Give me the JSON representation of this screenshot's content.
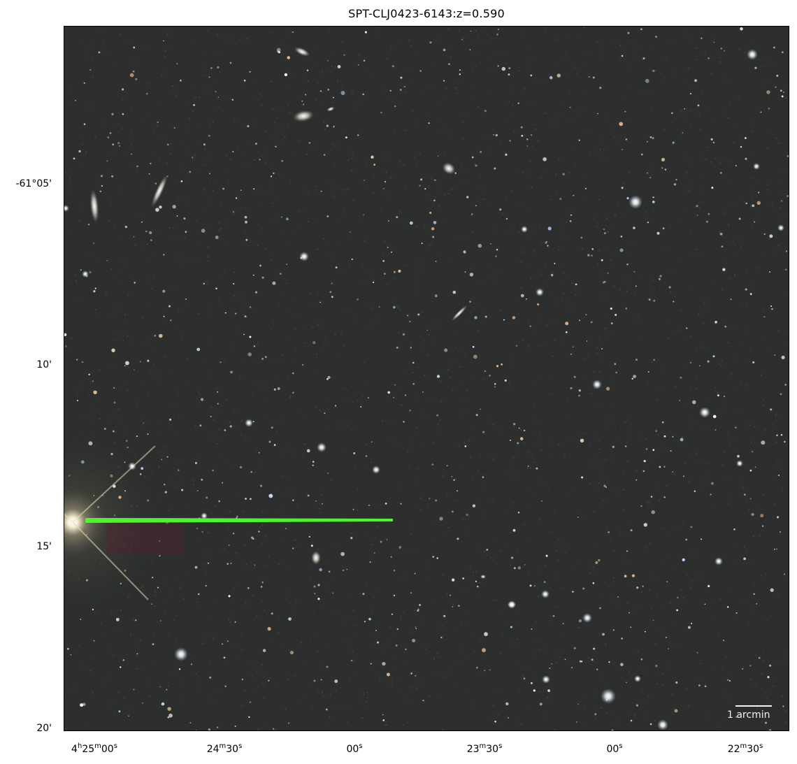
{
  "title": "SPT-CLJ0423-6143:z=0.590",
  "y_ticks": [
    {
      "label": "-61°05'"
    },
    {
      "label": "10'"
    },
    {
      "label": "15'"
    },
    {
      "label": "20'"
    }
  ],
  "x_ticks": [
    {
      "h": "4",
      "hu": "h",
      "m": "25",
      "mu": "m",
      "s": "00",
      "su": "s"
    },
    {
      "h": "",
      "hu": "",
      "m": "24",
      "mu": "m",
      "s": "30",
      "su": "s"
    },
    {
      "h": "",
      "hu": "",
      "m": "",
      "mu": "",
      "s": "00",
      "su": "s"
    },
    {
      "h": "",
      "hu": "",
      "m": "23",
      "mu": "m",
      "s": "30",
      "su": "s"
    },
    {
      "h": "",
      "hu": "",
      "m": "",
      "mu": "",
      "s": "00",
      "su": "s"
    },
    {
      "h": "",
      "hu": "",
      "m": "22",
      "mu": "m",
      "s": "30",
      "su": "s"
    }
  ],
  "scale_bar": {
    "label": "1 arcmin"
  },
  "colors": {
    "sky_background": "#2c2f2d",
    "satellite_trail": "#4ef52f",
    "bright_star": "#fff6dc"
  }
}
